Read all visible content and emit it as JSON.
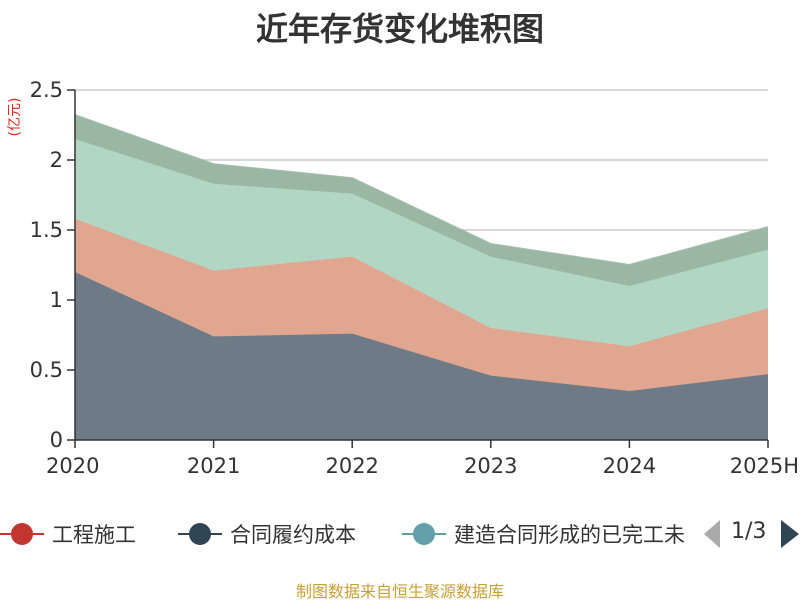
{
  "chart_data": {
    "type": "area",
    "stacked": true,
    "title": "近年存货变化堆积图",
    "unit_label": "(亿元)",
    "categories": [
      "2020",
      "2021",
      "2022",
      "2023",
      "2024",
      "2025H"
    ],
    "ylim": [
      0,
      2.5
    ],
    "yticks": [
      "0",
      "0.5",
      "1",
      "1.5",
      "2",
      "2.5"
    ],
    "grid": true,
    "series": [
      {
        "name": "合同履约成本",
        "values": [
          1.2,
          0.74,
          0.76,
          0.46,
          0.35,
          0.47
        ],
        "color": "#6e7b87"
      },
      {
        "name": "工程施工",
        "values": [
          0.38,
          0.47,
          0.55,
          0.34,
          0.32,
          0.47
        ],
        "color": "#e1a690"
      },
      {
        "name": "建造合同形成的已完工未结算资产",
        "values": [
          0.57,
          0.62,
          0.45,
          0.51,
          0.43,
          0.42
        ],
        "color": "#b2d6c4"
      },
      {
        "name": "",
        "values": [
          0.17,
          0.14,
          0.11,
          0.09,
          0.15,
          0.16
        ],
        "color": "#9ab7a4"
      }
    ]
  },
  "legend": {
    "items": [
      {
        "label": "工程施工",
        "color": "#c23531"
      },
      {
        "label": "合同履约成本",
        "color": "#2f4554"
      },
      {
        "label": "建造合同形成的已完工未结算资产",
        "color": "#61a0a8"
      }
    ],
    "page_text": "1/3"
  },
  "source_text": "制图数据来自恒生聚源数据库"
}
